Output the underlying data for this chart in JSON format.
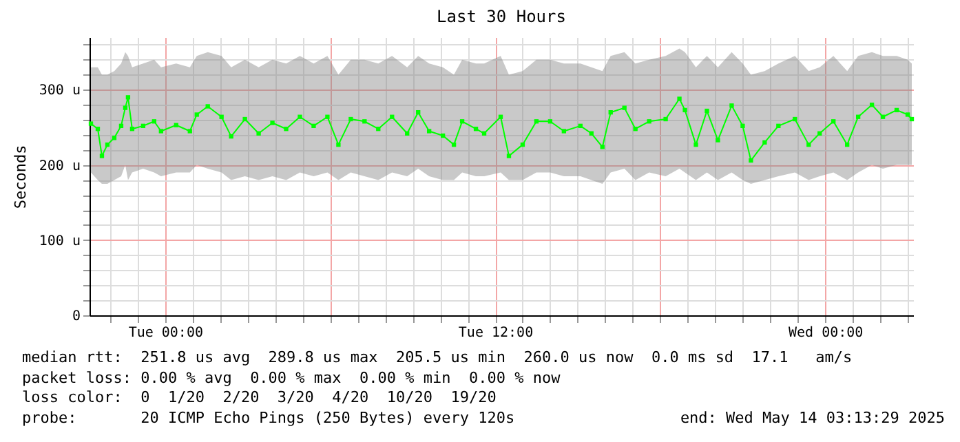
{
  "chart_data": {
    "type": "line",
    "title": "Last 30 Hours",
    "ylabel": "Seconds",
    "x": [
      "2025-05-12T21:18",
      "2025-05-12T21:33",
      "2025-05-12T21:42",
      "2025-05-12T21:54",
      "2025-05-12T22:09",
      "2025-05-12T22:24",
      "2025-05-12T22:33",
      "2025-05-12T22:39",
      "2025-05-12T22:48",
      "2025-05-12T23:12",
      "2025-05-12T23:36",
      "2025-05-12T23:51",
      "2025-05-13T00:24",
      "2025-05-13T00:54",
      "2025-05-13T01:09",
      "2025-05-13T01:33",
      "2025-05-13T02:03",
      "2025-05-13T02:24",
      "2025-05-13T02:54",
      "2025-05-13T03:24",
      "2025-05-13T03:54",
      "2025-05-13T04:24",
      "2025-05-13T04:54",
      "2025-05-13T05:24",
      "2025-05-13T05:54",
      "2025-05-13T06:18",
      "2025-05-13T06:45",
      "2025-05-13T07:15",
      "2025-05-13T07:45",
      "2025-05-13T08:15",
      "2025-05-13T08:48",
      "2025-05-13T09:12",
      "2025-05-13T09:36",
      "2025-05-13T10:06",
      "2025-05-13T10:30",
      "2025-05-13T10:48",
      "2025-05-13T11:18",
      "2025-05-13T11:36",
      "2025-05-13T12:12",
      "2025-05-13T12:30",
      "2025-05-13T13:00",
      "2025-05-13T13:30",
      "2025-05-13T14:00",
      "2025-05-13T14:30",
      "2025-05-13T15:06",
      "2025-05-13T15:30",
      "2025-05-13T15:54",
      "2025-05-13T16:12",
      "2025-05-13T16:42",
      "2025-05-13T17:06",
      "2025-05-13T17:36",
      "2025-05-13T18:12",
      "2025-05-13T18:42",
      "2025-05-13T18:54",
      "2025-05-13T19:18",
      "2025-05-13T19:42",
      "2025-05-13T20:06",
      "2025-05-13T20:36",
      "2025-05-13T21:00",
      "2025-05-13T21:18",
      "2025-05-13T21:48",
      "2025-05-13T22:18",
      "2025-05-13T22:54",
      "2025-05-13T23:24",
      "2025-05-13T23:48",
      "2025-05-14T00:18",
      "2025-05-14T00:48",
      "2025-05-14T01:12",
      "2025-05-14T01:42",
      "2025-05-14T02:06",
      "2025-05-14T02:36",
      "2025-05-14T03:00",
      "2025-05-14T03:09"
    ],
    "series": [
      {
        "color": "#00ff00",
        "values": [
          255,
          248,
          212,
          227,
          236,
          252,
          276,
          290,
          248,
          252,
          258,
          245,
          253,
          245,
          267,
          278,
          264,
          238,
          261,
          242,
          256,
          248,
          264,
          252,
          264,
          227,
          261,
          258,
          248,
          264,
          242,
          270,
          245,
          239,
          227,
          258,
          248,
          242,
          264,
          212,
          227,
          258,
          258,
          245,
          252,
          242,
          224,
          270,
          276,
          248,
          258,
          261,
          288,
          273,
          227,
          272,
          233,
          279,
          252,
          206,
          230,
          252,
          261,
          227,
          242,
          258,
          227,
          264,
          280,
          264,
          273,
          267,
          261
        ],
        "lower": [
          190,
          180,
          175,
          175,
          180,
          185,
          200,
          180,
          190,
          195,
          190,
          185,
          190,
          190,
          200,
          195,
          190,
          180,
          185,
          180,
          185,
          180,
          190,
          185,
          190,
          180,
          190,
          185,
          180,
          190,
          185,
          195,
          185,
          180,
          180,
          190,
          185,
          185,
          190,
          180,
          180,
          190,
          190,
          185,
          185,
          180,
          175,
          190,
          195,
          180,
          190,
          185,
          195,
          190,
          180,
          190,
          180,
          190,
          180,
          175,
          180,
          185,
          190,
          180,
          185,
          190,
          180,
          190,
          200,
          195,
          200,
          200,
          200
        ],
        "upper": [
          330,
          330,
          320,
          320,
          325,
          335,
          350,
          345,
          330,
          335,
          340,
          330,
          335,
          330,
          345,
          350,
          345,
          330,
          340,
          330,
          340,
          335,
          345,
          335,
          345,
          320,
          340,
          340,
          335,
          345,
          330,
          345,
          335,
          330,
          320,
          340,
          335,
          335,
          345,
          320,
          325,
          340,
          340,
          335,
          335,
          330,
          325,
          345,
          350,
          335,
          340,
          345,
          355,
          350,
          330,
          345,
          330,
          350,
          335,
          320,
          325,
          335,
          345,
          325,
          330,
          345,
          325,
          345,
          350,
          345,
          345,
          340,
          335
        ]
      }
    ],
    "xlim": [
      "2025-05-12T21:15",
      "2025-05-14T03:12"
    ],
    "xticks": [
      {
        "value": "2025-05-12T22:00",
        "label": null
      },
      {
        "value": "2025-05-12T23:00",
        "label": null
      },
      {
        "value": "2025-05-13T00:00",
        "label": "Tue 00:00"
      },
      {
        "value": "2025-05-13T01:00",
        "label": null
      },
      {
        "value": "2025-05-13T02:00",
        "label": null
      },
      {
        "value": "2025-05-13T03:00",
        "label": null
      },
      {
        "value": "2025-05-13T04:00",
        "label": null
      },
      {
        "value": "2025-05-13T05:00",
        "label": null
      },
      {
        "value": "2025-05-13T06:00",
        "label": null
      },
      {
        "value": "2025-05-13T07:00",
        "label": null
      },
      {
        "value": "2025-05-13T08:00",
        "label": null
      },
      {
        "value": "2025-05-13T09:00",
        "label": null
      },
      {
        "value": "2025-05-13T10:00",
        "label": null
      },
      {
        "value": "2025-05-13T11:00",
        "label": null
      },
      {
        "value": "2025-05-13T12:00",
        "label": "Tue 12:00"
      },
      {
        "value": "2025-05-13T13:00",
        "label": null
      },
      {
        "value": "2025-05-13T14:00",
        "label": null
      },
      {
        "value": "2025-05-13T15:00",
        "label": null
      },
      {
        "value": "2025-05-13T16:00",
        "label": null
      },
      {
        "value": "2025-05-13T17:00",
        "label": null
      },
      {
        "value": "2025-05-13T18:00",
        "label": null
      },
      {
        "value": "2025-05-13T19:00",
        "label": null
      },
      {
        "value": "2025-05-13T20:00",
        "label": null
      },
      {
        "value": "2025-05-13T21:00",
        "label": null
      },
      {
        "value": "2025-05-13T22:00",
        "label": null
      },
      {
        "value": "2025-05-13T23:00",
        "label": null
      },
      {
        "value": "2025-05-14T00:00",
        "label": "Wed 00:00"
      },
      {
        "value": "2025-05-14T01:00",
        "label": null
      },
      {
        "value": "2025-05-14T02:00",
        "label": null
      },
      {
        "value": "2025-05-14T03:00",
        "label": null
      }
    ],
    "ylim": [
      0,
      370
    ],
    "yticks": [
      {
        "value": 0,
        "label": "0"
      },
      {
        "value": 20,
        "label": null
      },
      {
        "value": 40,
        "label": null
      },
      {
        "value": 60,
        "label": null
      },
      {
        "value": 80,
        "label": null
      },
      {
        "value": 100,
        "label": "100 u"
      },
      {
        "value": 120,
        "label": null
      },
      {
        "value": 140,
        "label": null
      },
      {
        "value": 160,
        "label": null
      },
      {
        "value": 180,
        "label": null
      },
      {
        "value": 200,
        "label": "200 u"
      },
      {
        "value": 220,
        "label": null
      },
      {
        "value": 240,
        "label": null
      },
      {
        "value": 260,
        "label": null
      },
      {
        "value": 280,
        "label": null
      },
      {
        "value": 300,
        "label": "300 u"
      },
      {
        "value": 320,
        "label": null
      },
      {
        "value": 340,
        "label": null
      },
      {
        "value": 360,
        "label": null
      }
    ],
    "grid": true,
    "marker": "square",
    "annotations": [
      "median rtt:  251.8 us avg  289.8 us max  205.5 us min  260.0 us now  0.0 ms sd  17.1   am/s",
      "packet loss: 0.00 % avg  0.00 % max  0.00 % min  0.00 % now",
      "loss color:  0  1/20  2/20  3/20  4/20  10/20  19/20",
      "probe:       20 ICMP Echo Pings (250 Bytes) every 120s",
      "end: Wed May 14 03:13:29 2025"
    ]
  }
}
